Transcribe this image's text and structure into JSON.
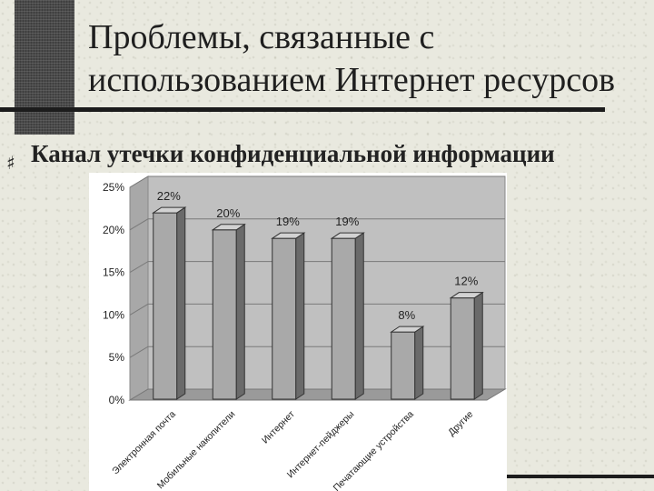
{
  "slide": {
    "title_line1": "Проблемы, связанные с",
    "title_line2": "использованием Интернет ресурсов",
    "subtitle": "Канал утечки конфиденциальной информации",
    "bullet_icon": "hash-bullet-icon"
  },
  "chart_data": {
    "type": "bar",
    "categories": [
      "Электронная почта",
      "Мобильные накопители",
      "Интернет",
      "Интернет-пейджеры",
      "Печатающие устройства",
      "Другие"
    ],
    "values": [
      22,
      20,
      19,
      19,
      8,
      12
    ],
    "value_labels": [
      "22%",
      "20%",
      "19%",
      "19%",
      "8%",
      "12%"
    ],
    "yticks": [
      "0%",
      "5%",
      "10%",
      "15%",
      "20%",
      "25%"
    ],
    "ylim": [
      0,
      25
    ],
    "grid": true,
    "legend": "none",
    "colors": {
      "bar_front": "#a9a9a9",
      "bar_side": "#6a6a6a",
      "bar_top": "#d2d2d2",
      "plot_wall": "#c0c0c0"
    }
  }
}
